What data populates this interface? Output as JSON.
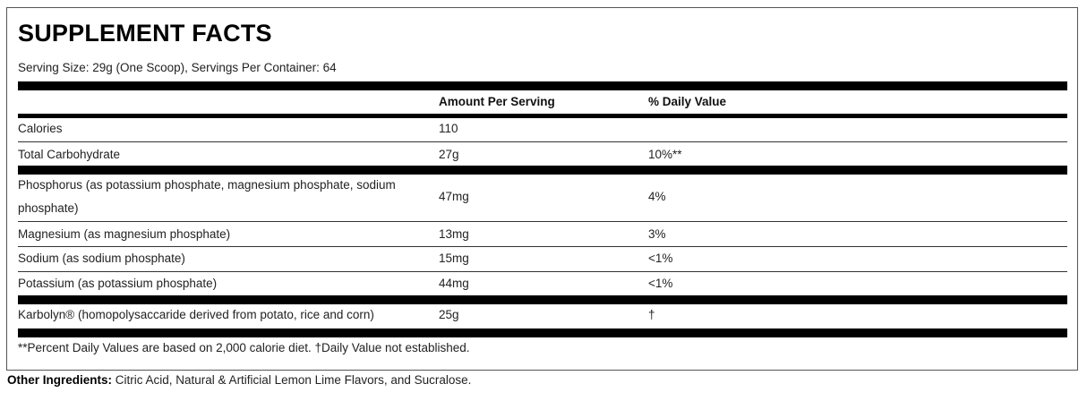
{
  "title": "SUPPLEMENT FACTS",
  "serving": "Serving Size: 29g (One Scoop), Servings Per Container: 64",
  "headers": {
    "amount": "Amount Per Serving",
    "dv": "% Daily Value"
  },
  "rows": [
    {
      "name": "Calories",
      "amount": "110",
      "dv": ""
    },
    {
      "name": "Total Carbohydrate",
      "amount": "27g",
      "dv": "10%**"
    },
    {
      "name": "Phosphorus (as potassium phosphate, magnesium phosphate, sodium",
      "name2": "phosphate)",
      "amount": "47mg",
      "dv": "4%"
    },
    {
      "name": "Magnesium (as magnesium phosphate)",
      "amount": "13mg",
      "dv": "3%"
    },
    {
      "name": "Sodium (as sodium phosphate)",
      "amount": "15mg",
      "dv": "<1%"
    },
    {
      "name": "Potassium (as potassium phosphate)",
      "amount": "44mg",
      "dv": "<1%"
    },
    {
      "name": "Karbolyn® (homopolysaccaride derived from potato, rice and corn)",
      "amount": "25g",
      "dv": "†"
    }
  ],
  "footnote": "**Percent Daily Values are based on 2,000 calorie diet. †Daily Value not established.",
  "other": {
    "label": "Other Ingredients:",
    "text": " Citric Acid, Natural & Artificial Lemon Lime Flavors, and Sucralose."
  }
}
